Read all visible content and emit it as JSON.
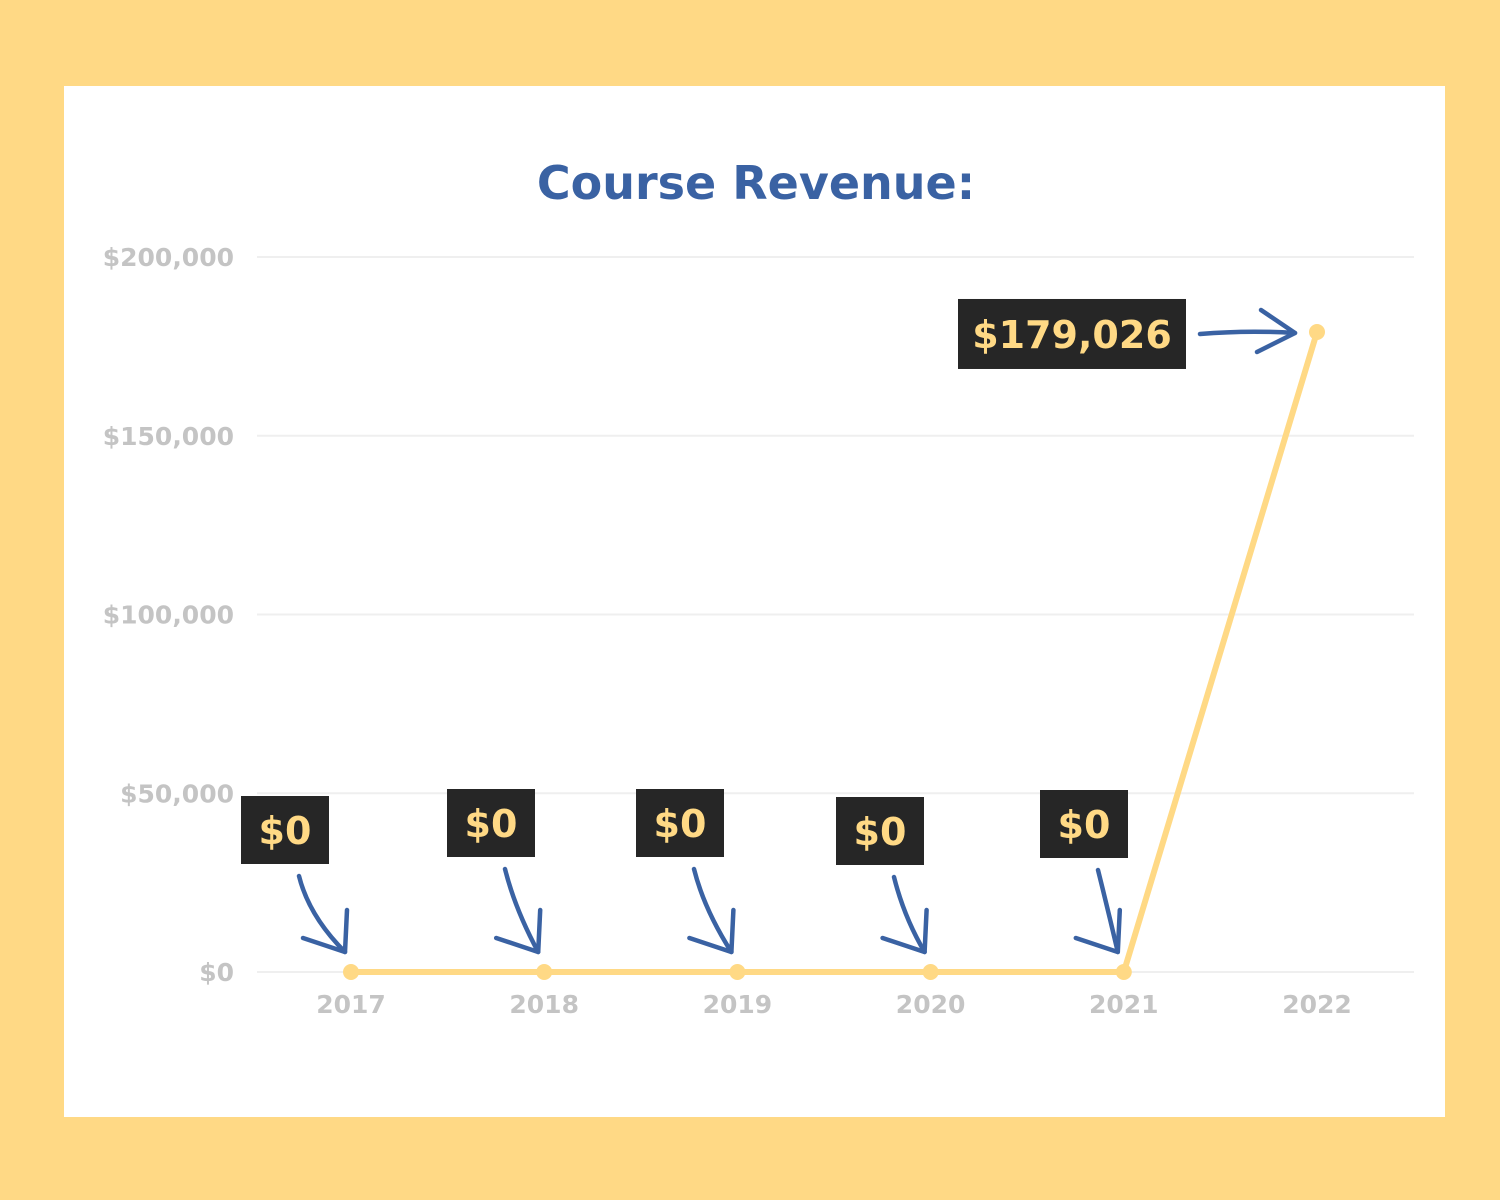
{
  "colors": {
    "background": "#ffd985",
    "card": "#ffffff",
    "line": "#ffd985",
    "title": "#3a62a3",
    "tick": "#c4c4c4",
    "grid": "#efefef",
    "label_box": "#262626",
    "label_text": "#ffd985",
    "arrow": "#3a62a3"
  },
  "chart_data": {
    "type": "line",
    "title": "Course Revenue:",
    "xlabel": "",
    "ylabel": "",
    "categories": [
      "2017",
      "2018",
      "2019",
      "2020",
      "2021",
      "2022"
    ],
    "series": [
      {
        "values": [
          0,
          0,
          0,
          0,
          0,
          179026
        ]
      }
    ],
    "data_labels": [
      "$0",
      "$0",
      "$0",
      "$0",
      "$0",
      "$179,026"
    ],
    "y_ticks": [
      0,
      50000,
      100000,
      150000,
      200000
    ],
    "y_tick_labels": [
      "$0",
      "$50,000",
      "$100,000",
      "$150,000",
      "$200,000"
    ],
    "ylim": [
      0,
      200000
    ],
    "grid": true,
    "legend": "none"
  }
}
